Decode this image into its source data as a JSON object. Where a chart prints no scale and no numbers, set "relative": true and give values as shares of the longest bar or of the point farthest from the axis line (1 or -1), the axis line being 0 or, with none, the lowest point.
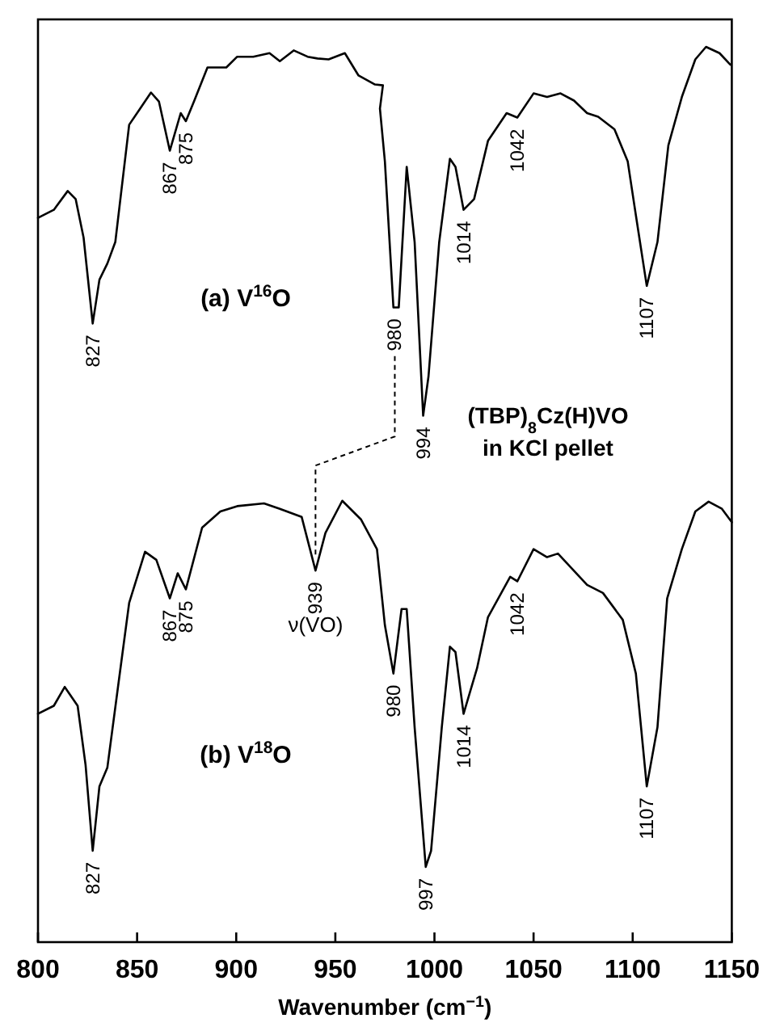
{
  "chart_data": {
    "type": "line",
    "relative": true,
    "xlabel": "Wavenumber (cm$^{−1}$)",
    "xlim": [
      800,
      1150
    ],
    "xticks": [
      800,
      850,
      900,
      950,
      1000,
      1050,
      1100,
      1150
    ],
    "tick_labels": "x",
    "line_style": "solid",
    "series": [
      {
        "color": "#000000",
        "x": [
          800,
          808,
          815,
          819,
          823,
          827.6,
          831,
          835,
          839,
          846,
          851.5,
          857,
          861,
          866.5,
          869,
          872,
          874.6,
          878.7,
          885.5,
          895,
          900.5,
          908.6,
          916.8,
          922,
          929,
          936,
          941,
          946.6,
          954.8,
          961.7,
          970,
          974,
          972.5,
          975,
          979.3,
          982,
          986,
          990,
          994.3,
          997,
          1002.4,
          1007.8,
          1010.6,
          1014.7,
          1020,
          1027,
          1036.4,
          1041.8,
          1050,
          1056.8,
          1063.6,
          1070.4,
          1077,
          1082.6,
          1090.8,
          1097.5,
          1101.6,
          1107.1,
          1112.5,
          1118,
          1124.8,
          1131.6,
          1137,
          1143.8,
          1149.3
        ],
        "values": [
          0.809,
          0.818,
          0.839,
          0.83,
          0.787,
          0.691,
          0.74,
          0.758,
          0.782,
          0.913,
          0.931,
          0.949,
          0.939,
          0.884,
          0.903,
          0.926,
          0.917,
          0.939,
          0.977,
          0.977,
          0.989,
          0.989,
          0.993,
          0.984,
          0.996,
          0.989,
          0.987,
          0.986,
          0.993,
          0.968,
          0.958,
          0.957,
          0.931,
          0.872,
          0.709,
          0.709,
          0.866,
          0.782,
          0.588,
          0.632,
          0.782,
          0.875,
          0.866,
          0.818,
          0.83,
          0.895,
          0.926,
          0.921,
          0.948,
          0.944,
          0.948,
          0.94,
          0.926,
          0.922,
          0.908,
          0.872,
          0.812,
          0.733,
          0.782,
          0.89,
          0.944,
          0.986,
          1.0,
          0.993,
          0.98
        ]
      },
      {
        "color": "#000000",
        "x": [
          800,
          808,
          813.5,
          820,
          824,
          827.6,
          831,
          835,
          840.6,
          846,
          854,
          859.7,
          866.5,
          870.5,
          874.6,
          882.8,
          892,
          900.5,
          914,
          922,
          933,
          940,
          945,
          953.5,
          963,
          971,
          975,
          979.3,
          983.4,
          986,
          990,
          995.6,
          998.3,
          1003.7,
          1007.8,
          1010.6,
          1014.7,
          1021.5,
          1027,
          1038.2,
          1041.8,
          1050,
          1056.8,
          1062.3,
          1077,
          1085,
          1095,
          1101.6,
          1107.1,
          1112.5,
          1117.4,
          1124.8,
          1131.6,
          1138.3,
          1145,
          1150
        ],
        "values": [
          0.255,
          0.264,
          0.285,
          0.264,
          0.198,
          0.102,
          0.174,
          0.195,
          0.289,
          0.379,
          0.436,
          0.427,
          0.384,
          0.412,
          0.394,
          0.463,
          0.481,
          0.487,
          0.49,
          0.484,
          0.475,
          0.415,
          0.457,
          0.493,
          0.472,
          0.439,
          0.354,
          0.3,
          0.372,
          0.372,
          0.24,
          0.084,
          0.102,
          0.24,
          0.33,
          0.324,
          0.255,
          0.306,
          0.363,
          0.408,
          0.403,
          0.439,
          0.43,
          0.434,
          0.399,
          0.39,
          0.36,
          0.3,
          0.174,
          0.24,
          0.384,
          0.439,
          0.481,
          0.492,
          0.484,
          0.469
        ]
      }
    ],
    "annotations": [
      {
        "text": "827",
        "x": 827.6,
        "y": 0.691
      },
      {
        "text": "867",
        "x": 866.5,
        "y": 0.884
      },
      {
        "text": "875",
        "x": 874.6,
        "y": 0.917
      },
      {
        "text": "980",
        "x": 980,
        "y": 0.709
      },
      {
        "text": "994",
        "x": 994.3,
        "y": 0.588
      },
      {
        "text": "1014",
        "x": 1014.7,
        "y": 0.818
      },
      {
        "text": "1042",
        "x": 1041.8,
        "y": 0.921
      },
      {
        "text": "1107",
        "x": 1107.1,
        "y": 0.733
      },
      {
        "text": "827",
        "x": 827.6,
        "y": 0.102
      },
      {
        "text": "867",
        "x": 866.5,
        "y": 0.384
      },
      {
        "text": "875",
        "x": 874.6,
        "y": 0.394
      },
      {
        "text": "939",
        "x": 940,
        "y": 0.415
      },
      {
        "text": "980",
        "x": 979.3,
        "y": 0.3
      },
      {
        "text": "997",
        "x": 995.6,
        "y": 0.084
      },
      {
        "text": "1014",
        "x": 1014.7,
        "y": 0.255
      },
      {
        "text": "1042",
        "x": 1041.8,
        "y": 0.403
      },
      {
        "text": "1107",
        "x": 1107.1,
        "y": 0.174
      },
      "ν(VO)",
      "(TBP)$_{8}$Cz(H)VO",
      "in KCl pellet",
      "(a) V$^{16}$O",
      "(b) V$^{18}$O"
    ]
  }
}
